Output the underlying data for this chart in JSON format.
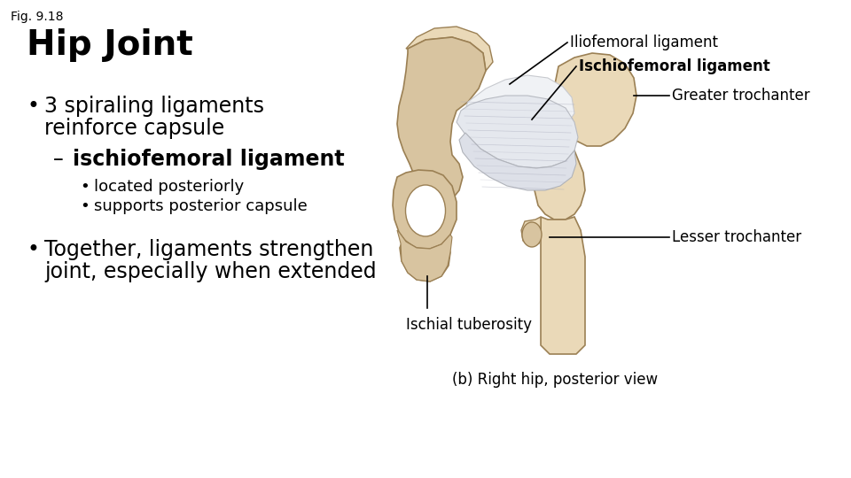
{
  "fig_label": "Fig. 9.18",
  "title": "Hip Joint",
  "bullet1_line1": "3 spiraling ligaments",
  "bullet1_line2": "reinforce capsule",
  "sub_dash": "– ",
  "sub_bold": "ischiofemoral ligament",
  "sub_sub1": "located posteriorly",
  "sub_sub2": "supports posterior capsule",
  "bullet2_line1": "Together, ligaments strengthen",
  "bullet2_line2": "joint, especially when extended",
  "annotation1": "Iliofemoral ligament",
  "annotation2": "Ischiofemoral ligament",
  "annotation3": "Greater trochanter",
  "annotation4": "Lesser trochanter",
  "annotation5": "Ischial tuberosity",
  "caption": "(b) Right hip, posterior view",
  "bg_color": "#ffffff",
  "text_color": "#000000",
  "fig_label_fontsize": 10,
  "title_fontsize": 28,
  "bullet_fontsize": 17,
  "sub_bullet_fontsize": 17,
  "sub_sub_fontsize": 13,
  "annotation_fontsize": 12,
  "caption_fontsize": 12,
  "bone_tan": "#D8C4A0",
  "bone_light": "#EAD9B8",
  "bone_dark": "#C4A878",
  "bone_edge": "#9B8054",
  "ligament_white": "#E8EAF0",
  "ligament_mid": "#D0D4DC",
  "ligament_stripe": "#C0C4CC"
}
